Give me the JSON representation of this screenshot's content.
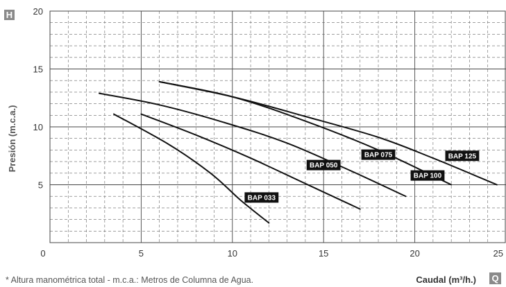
{
  "chart_data": {
    "type": "line",
    "title": "",
    "xlabel": "Caudal (m³/h.)",
    "ylabel": "Presión (m.c.a.)",
    "y_axis_badge": "H",
    "x_axis_badge": "Q",
    "xlim": [
      0,
      25
    ],
    "ylim": [
      0,
      20
    ],
    "x_ticks": [
      "0",
      "5",
      "10",
      "15",
      "20",
      "25"
    ],
    "y_ticks": [
      "5",
      "10",
      "15",
      "20"
    ],
    "grid": true,
    "legend": "inline labels",
    "series": [
      {
        "name": "BAP 033",
        "x": [
          3.5,
          6.5,
          8.8,
          10.5,
          12.0
        ],
        "y": [
          11.1,
          8.5,
          6.0,
          3.6,
          1.7
        ],
        "label_at": [
          11.6,
          3.9
        ]
      },
      {
        "name": "BAP 050",
        "x": [
          5.0,
          8.0,
          11.0,
          14.0,
          17.0
        ],
        "y": [
          11.1,
          9.3,
          7.3,
          5.1,
          2.9
        ],
        "label_at": [
          15.0,
          6.7
        ]
      },
      {
        "name": "BAP 075",
        "x": [
          2.7,
          6.0,
          9.5,
          13.0,
          16.5,
          19.5
        ],
        "y": [
          12.9,
          11.9,
          10.4,
          8.6,
          6.2,
          4.0
        ],
        "label_at": [
          18.0,
          7.6
        ]
      },
      {
        "name": "BAP 100",
        "x": [
          6.0,
          10.0,
          14.0,
          18.0,
          22.0
        ],
        "y": [
          13.9,
          12.6,
          10.5,
          8.0,
          5.0
        ],
        "label_at": [
          20.7,
          5.8
        ]
      },
      {
        "name": "BAP 125",
        "x": [
          6.0,
          10.0,
          14.0,
          18.0,
          21.0,
          24.5
        ],
        "y": [
          13.9,
          12.6,
          10.9,
          9.1,
          7.3,
          5.0
        ],
        "label_at": [
          22.6,
          7.5
        ]
      }
    ],
    "footnote": "* Altura manométrica total - m.c.a.: Metros de Columna de Agua."
  },
  "colors": {
    "curve": "#111111",
    "label_bg": "#111111",
    "badge_bg": "#8a8a8a",
    "grid": "#555555",
    "axis_text": "#333333"
  }
}
